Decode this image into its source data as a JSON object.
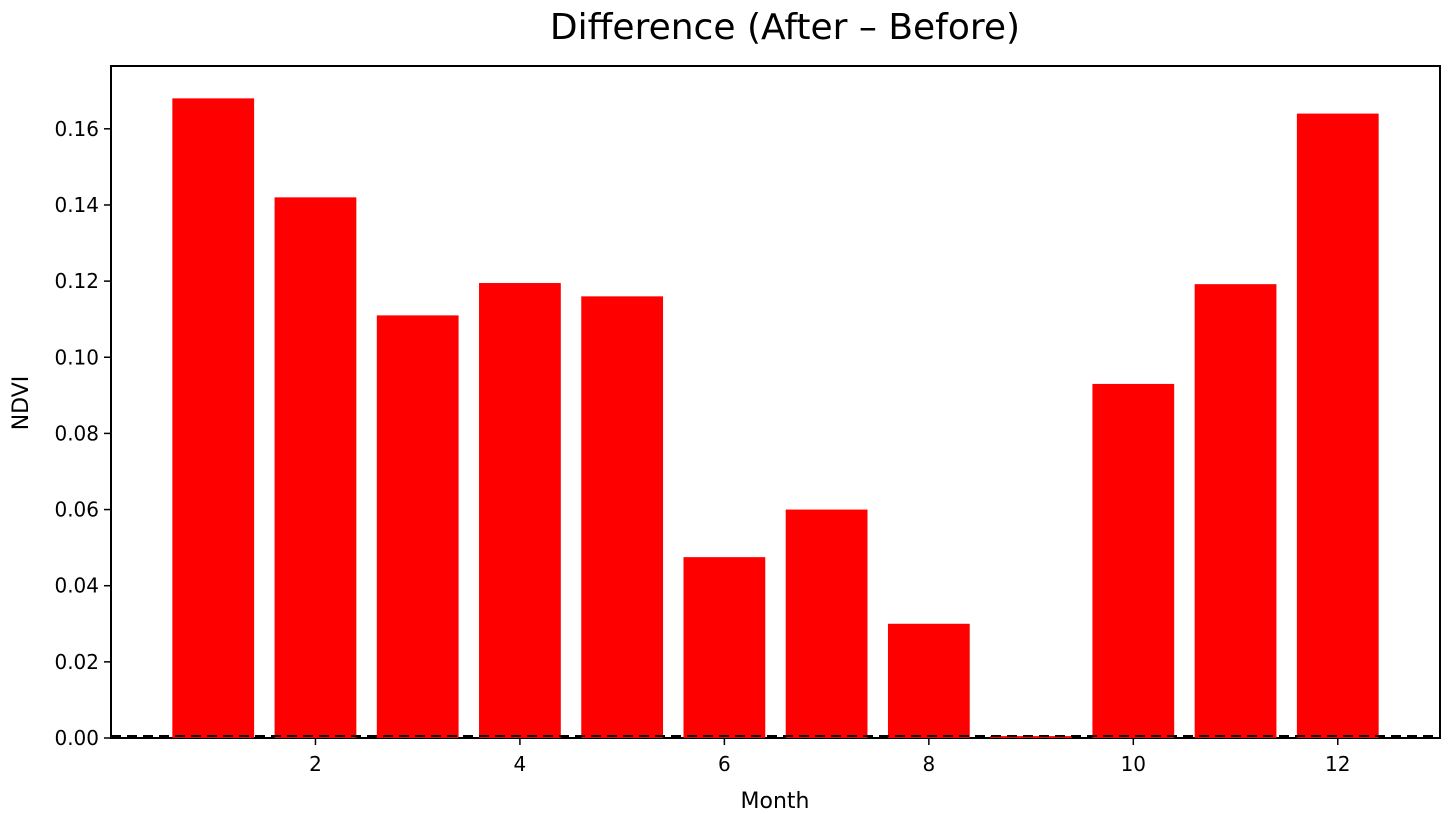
{
  "chart_data": {
    "type": "bar",
    "title": "Difference (After – Before)",
    "xlabel": "Month",
    "ylabel": "NDVI",
    "x": [
      1,
      2,
      3,
      4,
      5,
      6,
      7,
      8,
      9,
      10,
      11,
      12
    ],
    "values": [
      0.168,
      0.142,
      0.111,
      0.1195,
      0.116,
      0.0475,
      0.06,
      0.03,
      0.0005,
      0.093,
      0.1192,
      0.164
    ],
    "bar_color": "#ff0000",
    "xlim": [
      0.0,
      13.0
    ],
    "ylim": [
      0.0,
      0.1765
    ],
    "xticks": [
      2,
      4,
      6,
      8,
      10,
      12
    ],
    "yticks": [
      0.0,
      0.02,
      0.04,
      0.06,
      0.08,
      0.1,
      0.12,
      0.14,
      0.16
    ],
    "ytick_labels": [
      "0.00",
      "0.02",
      "0.04",
      "0.06",
      "0.08",
      "0.10",
      "0.12",
      "0.14",
      "0.16"
    ],
    "zero_line": "dashed",
    "grid": false,
    "legend": "none"
  }
}
